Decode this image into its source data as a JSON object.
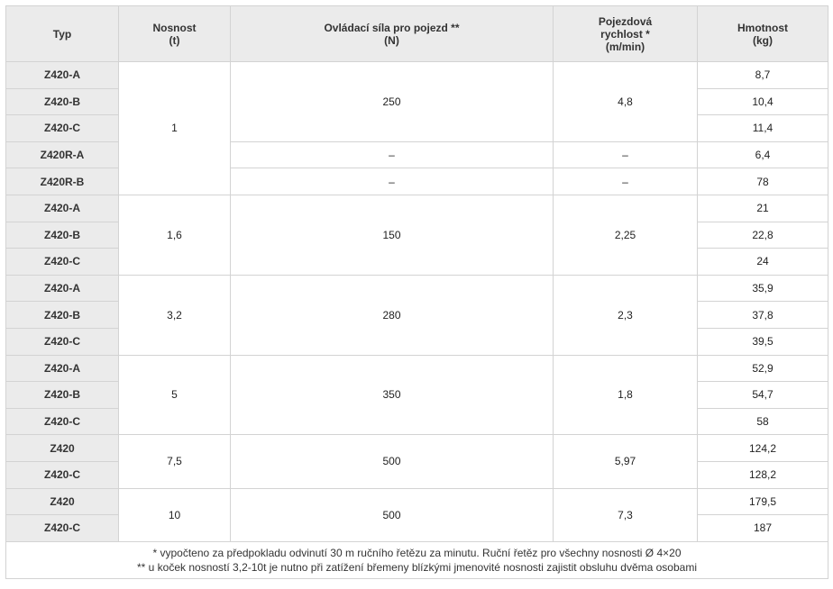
{
  "headers": {
    "typ": "Typ",
    "nosnost": [
      "Nosnost",
      "(t)"
    ],
    "sila": [
      "Ovládací síla pro pojezd **",
      "(N)"
    ],
    "rychlost": [
      "Pojezdová",
      "rychlost *",
      "(m/min)"
    ],
    "hmotnost": [
      "Hmotnost",
      "(kg)"
    ]
  },
  "rows": [
    {
      "typ": "Z420-A",
      "hmotnost": "8,7"
    },
    {
      "typ": "Z420-B",
      "hmotnost": "10,4"
    },
    {
      "typ": "Z420-C",
      "hmotnost": "11,4"
    },
    {
      "typ": "Z420R-A",
      "hmotnost": "6,4"
    },
    {
      "typ": "Z420R-B",
      "hmotnost": "78"
    },
    {
      "typ": "Z420-A",
      "hmotnost": "21"
    },
    {
      "typ": "Z420-B",
      "hmotnost": "22,8"
    },
    {
      "typ": "Z420-C",
      "hmotnost": "24"
    },
    {
      "typ": "Z420-A",
      "hmotnost": "35,9"
    },
    {
      "typ": "Z420-B",
      "hmotnost": "37,8"
    },
    {
      "typ": "Z420-C",
      "hmotnost": "39,5"
    },
    {
      "typ": "Z420-A",
      "hmotnost": "52,9"
    },
    {
      "typ": "Z420-B",
      "hmotnost": "54,7"
    },
    {
      "typ": "Z420-C",
      "hmotnost": "58"
    },
    {
      "typ": "Z420",
      "hmotnost": "124,2"
    },
    {
      "typ": "Z420-C",
      "hmotnost": "128,2"
    },
    {
      "typ": "Z420",
      "hmotnost": "179,5"
    },
    {
      "typ": "Z420-C",
      "hmotnost": "187"
    }
  ],
  "groups": [
    {
      "nosnost": "1",
      "sila_main": "250",
      "rychlost_main": "4,8",
      "sila_r1": "–",
      "rychlost_r1": "–",
      "sila_r2": "–",
      "rychlost_r2": "–"
    },
    {
      "nosnost": "1,6",
      "sila": "150",
      "rychlost": "2,25"
    },
    {
      "nosnost": "3,2",
      "sila": "280",
      "rychlost": "2,3"
    },
    {
      "nosnost": "5",
      "sila": "350",
      "rychlost": "1,8"
    },
    {
      "nosnost": "7,5",
      "sila": "500",
      "rychlost": "5,97"
    },
    {
      "nosnost": "10",
      "sila": "500",
      "rychlost": "7,3"
    }
  ],
  "footnotes": [
    "* vypočteno za předpokladu odvinutí 30 m ručního řetězu za minutu. Ruční řetěz pro všechny nosnosti Ø 4×20",
    "** u koček nosností 3,2-10t je nutno při zatížení břemeny blízkými jmenovité nosnosti zajistit obsluhu dvěma osobami"
  ]
}
